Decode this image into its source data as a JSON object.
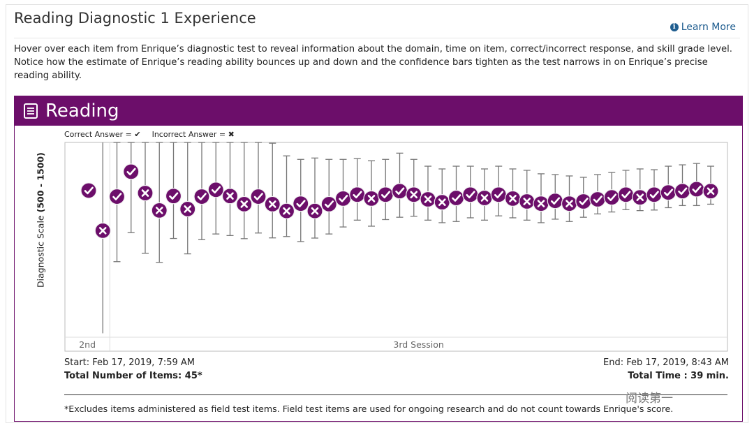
{
  "header": {
    "title": "Reading Diagnostic 1 Experience",
    "learn_more": "Learn More",
    "description": "Hover over each item from Enrique’s diagnostic test to reveal information about the domain, time on item, correct/incorrect response, and skill grade level. Notice how the estimate of Enrique’s reading ability bounces up and down and the confidence bars tighten as the test narrows in on Enrique’s precise reading ability."
  },
  "panel": {
    "title": "Reading"
  },
  "legend": {
    "correct_label": "Correct Answer =",
    "correct_symbol": "✔",
    "incorrect_label": "Incorrect Answer =",
    "incorrect_symbol": "✖"
  },
  "chart_data": {
    "type": "scatter",
    "title": "Reading",
    "ylabel": "Diagnostic Scale",
    "ylabel_range": "(500 - 1500)",
    "ylim": [
      500,
      1500
    ],
    "sessions": [
      {
        "label": "2nd",
        "items": 2
      },
      {
        "label": "3rd Session",
        "items": 44
      }
    ],
    "points": [
      {
        "item": 1,
        "score": 1253,
        "correct": true,
        "lo": null,
        "hi": null
      },
      {
        "item": 2,
        "score": 1047,
        "correct": false,
        "lo": null,
        "hi": null
      },
      {
        "item": 3,
        "score": 1222,
        "correct": true,
        "lo": 888,
        "hi": 1500
      },
      {
        "item": 4,
        "score": 1350,
        "correct": true,
        "lo": 1037,
        "hi": 1500
      },
      {
        "item": 5,
        "score": 1240,
        "correct": false,
        "lo": 931,
        "hi": 1500
      },
      {
        "item": 6,
        "score": 1151,
        "correct": false,
        "lo": 884,
        "hi": 1500
      },
      {
        "item": 7,
        "score": 1225,
        "correct": true,
        "lo": 1007,
        "hi": 1500
      },
      {
        "item": 8,
        "score": 1158,
        "correct": false,
        "lo": 928,
        "hi": 1500
      },
      {
        "item": 9,
        "score": 1222,
        "correct": true,
        "lo": 1001,
        "hi": 1500
      },
      {
        "item": 10,
        "score": 1257,
        "correct": true,
        "lo": 1030,
        "hi": 1500
      },
      {
        "item": 11,
        "score": 1225,
        "correct": false,
        "lo": 1022,
        "hi": 1500
      },
      {
        "item": 12,
        "score": 1183,
        "correct": false,
        "lo": 1006,
        "hi": 1500
      },
      {
        "item": 13,
        "score": 1222,
        "correct": true,
        "lo": 1035,
        "hi": 1500
      },
      {
        "item": 14,
        "score": 1183,
        "correct": false,
        "lo": 1010,
        "hi": 1496
      },
      {
        "item": 15,
        "score": 1148,
        "correct": false,
        "lo": 1017,
        "hi": 1431
      },
      {
        "item": 16,
        "score": 1186,
        "correct": true,
        "lo": 991,
        "hi": 1413
      },
      {
        "item": 17,
        "score": 1148,
        "correct": false,
        "lo": 1009,
        "hi": 1420
      },
      {
        "item": 18,
        "score": 1183,
        "correct": true,
        "lo": 1030,
        "hi": 1413
      },
      {
        "item": 19,
        "score": 1212,
        "correct": true,
        "lo": 1066,
        "hi": 1413
      },
      {
        "item": 20,
        "score": 1232,
        "correct": true,
        "lo": 1101,
        "hi": 1417
      },
      {
        "item": 21,
        "score": 1212,
        "correct": false,
        "lo": 1070,
        "hi": 1406
      },
      {
        "item": 22,
        "score": 1232,
        "correct": true,
        "lo": 1104,
        "hi": 1413
      },
      {
        "item": 23,
        "score": 1250,
        "correct": true,
        "lo": 1116,
        "hi": 1445
      },
      {
        "item": 24,
        "score": 1232,
        "correct": false,
        "lo": 1121,
        "hi": 1413
      },
      {
        "item": 25,
        "score": 1208,
        "correct": false,
        "lo": 1101,
        "hi": 1378
      },
      {
        "item": 26,
        "score": 1193,
        "correct": false,
        "lo": 1088,
        "hi": 1364
      },
      {
        "item": 27,
        "score": 1215,
        "correct": true,
        "lo": 1094,
        "hi": 1378
      },
      {
        "item": 28,
        "score": 1232,
        "correct": true,
        "lo": 1113,
        "hi": 1378
      },
      {
        "item": 29,
        "score": 1215,
        "correct": false,
        "lo": 1101,
        "hi": 1364
      },
      {
        "item": 30,
        "score": 1232,
        "correct": true,
        "lo": 1123,
        "hi": 1378
      },
      {
        "item": 31,
        "score": 1212,
        "correct": false,
        "lo": 1113,
        "hi": 1364
      },
      {
        "item": 32,
        "score": 1197,
        "correct": false,
        "lo": 1101,
        "hi": 1357
      },
      {
        "item": 33,
        "score": 1186,
        "correct": false,
        "lo": 1088,
        "hi": 1339
      },
      {
        "item": 34,
        "score": 1200,
        "correct": true,
        "lo": 1106,
        "hi": 1335
      },
      {
        "item": 35,
        "score": 1186,
        "correct": false,
        "lo": 1094,
        "hi": 1328
      },
      {
        "item": 36,
        "score": 1197,
        "correct": true,
        "lo": 1116,
        "hi": 1321
      },
      {
        "item": 37,
        "score": 1208,
        "correct": true,
        "lo": 1133,
        "hi": 1335
      },
      {
        "item": 38,
        "score": 1218,
        "correct": true,
        "lo": 1143,
        "hi": 1346
      },
      {
        "item": 39,
        "score": 1232,
        "correct": true,
        "lo": 1155,
        "hi": 1357
      },
      {
        "item": 40,
        "score": 1218,
        "correct": false,
        "lo": 1150,
        "hi": 1364
      },
      {
        "item": 41,
        "score": 1232,
        "correct": true,
        "lo": 1153,
        "hi": 1360
      },
      {
        "item": 42,
        "score": 1243,
        "correct": true,
        "lo": 1165,
        "hi": 1378
      },
      {
        "item": 43,
        "score": 1250,
        "correct": true,
        "lo": 1176,
        "hi": 1385
      },
      {
        "item": 44,
        "score": 1260,
        "correct": true,
        "lo": 1176,
        "hi": 1392
      },
      {
        "item": 45,
        "score": 1250,
        "correct": false,
        "lo": 1183,
        "hi": 1378
      }
    ]
  },
  "summary": {
    "start": "Start: Feb 17, 2019, 7:59 AM",
    "total_items": "Total Number of Items: 45*",
    "end": "End: Feb 17, 2019, 8:43 AM",
    "total_time": "Total Time : 39 min.",
    "footnote": "*Excludes items administered as field test items. Field test items are used for ongoing research and do not count towards Enrique's score."
  },
  "watermark": "阅读第一",
  "colors": {
    "accent": "#6c0e6a",
    "link": "#1f5d8f"
  }
}
